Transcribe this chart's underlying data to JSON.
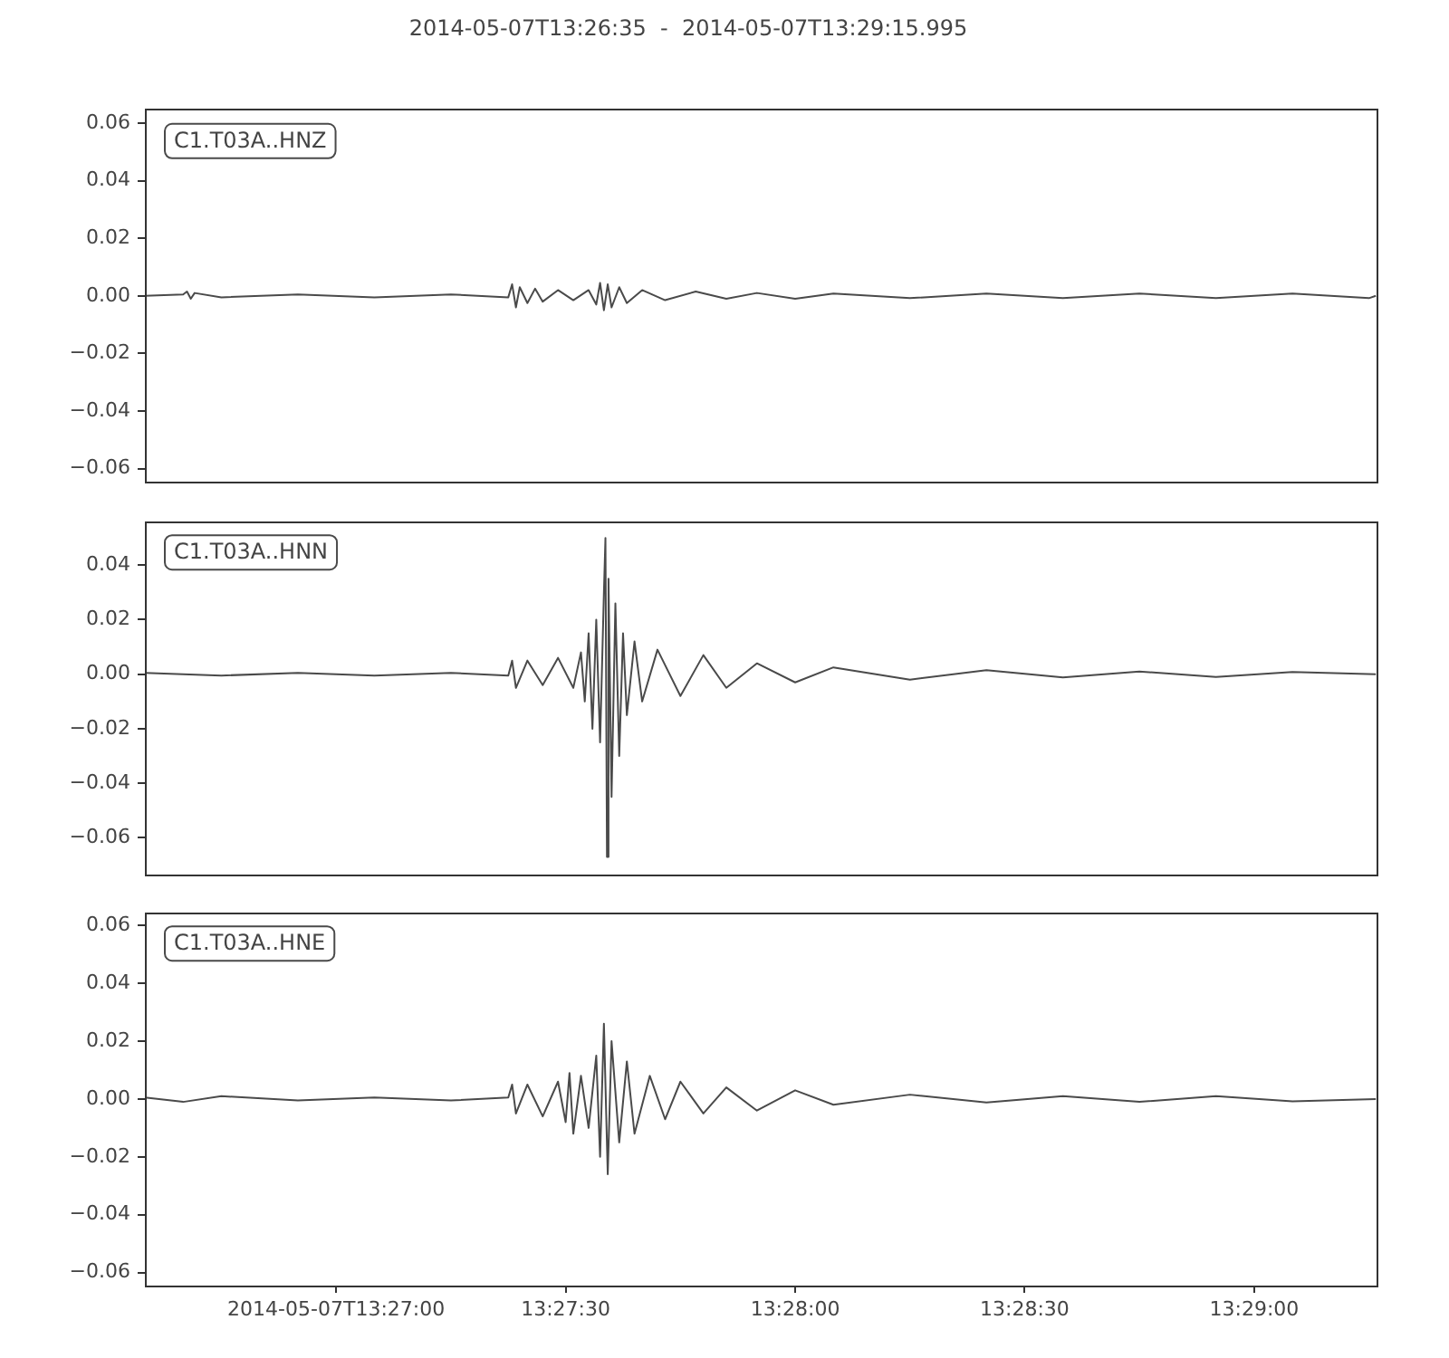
{
  "chart_data": [
    {
      "type": "line",
      "title": "2014-05-07T13:26:35  -  2014-05-07T13:29:15.995",
      "xlim": [
        "2014-05-07T13:26:35",
        "2014-05-07T13:29:15.995"
      ],
      "ylim": [
        -0.0648,
        0.0648
      ],
      "yticks": [
        {
          "value": -0.06,
          "label": "−0.06"
        },
        {
          "value": -0.04,
          "label": "−0.04"
        },
        {
          "value": -0.02,
          "label": "−0.02"
        },
        {
          "value": 0,
          "label": "0.00"
        },
        {
          "value": 0.02,
          "label": "0.02"
        },
        {
          "value": 0.04,
          "label": "0.04"
        },
        {
          "value": 0.06,
          "label": "0.06"
        }
      ],
      "tick_labels": "y",
      "grid": false,
      "legend": false,
      "marker": "none",
      "line_style": "solid",
      "series": [
        {
          "name": "C1.T03A..HNZ",
          "color": "#4a4a4a",
          "x": [
            "2014-05-07T13:26:35",
            "2014-05-07T13:26:40",
            "2014-05-07T13:26:40.5",
            "2014-05-07T13:26:41",
            "2014-05-07T13:26:41.5",
            "2014-05-07T13:26:45",
            "2014-05-07T13:26:55",
            "2014-05-07T13:27:05",
            "2014-05-07T13:27:15",
            "2014-05-07T13:27:22.5",
            "2014-05-07T13:27:23",
            "2014-05-07T13:27:23.5",
            "2014-05-07T13:27:24",
            "2014-05-07T13:27:25",
            "2014-05-07T13:27:26",
            "2014-05-07T13:27:27",
            "2014-05-07T13:27:29",
            "2014-05-07T13:27:31",
            "2014-05-07T13:27:33",
            "2014-05-07T13:27:34",
            "2014-05-07T13:27:34.5",
            "2014-05-07T13:27:35",
            "2014-05-07T13:27:35.5",
            "2014-05-07T13:27:36",
            "2014-05-07T13:27:37",
            "2014-05-07T13:27:38",
            "2014-05-07T13:27:40",
            "2014-05-07T13:27:43",
            "2014-05-07T13:27:47",
            "2014-05-07T13:27:51",
            "2014-05-07T13:27:55",
            "2014-05-07T13:28:00",
            "2014-05-07T13:28:05",
            "2014-05-07T13:28:15",
            "2014-05-07T13:28:25",
            "2014-05-07T13:28:35",
            "2014-05-07T13:28:45",
            "2014-05-07T13:28:55",
            "2014-05-07T13:29:05",
            "2014-05-07T13:29:15",
            "2014-05-07T13:29:15.9"
          ],
          "values": [
            0,
            0.0005,
            0.0015,
            -0.001,
            0.001,
            -0.0005,
            0.0005,
            -0.0005,
            0.0005,
            -0.0005,
            0.004,
            -0.004,
            0.003,
            -0.0025,
            0.0025,
            -0.002,
            0.002,
            -0.0015,
            0.002,
            -0.003,
            0.0045,
            -0.005,
            0.004,
            -0.004,
            0.003,
            -0.0025,
            0.002,
            -0.0015,
            0.0015,
            -0.001,
            0.001,
            -0.001,
            0.0008,
            -0.0008,
            0.0008,
            -0.0008,
            0.0008,
            -0.0008,
            0.0008,
            -0.0008,
            0
          ]
        }
      ]
    },
    {
      "type": "line",
      "xlim": [
        "2014-05-07T13:26:35",
        "2014-05-07T13:29:15.995"
      ],
      "ylim": [
        -0.0731,
        0.0563
      ],
      "yticks": [
        {
          "value": -0.06,
          "label": "−0.06"
        },
        {
          "value": -0.04,
          "label": "−0.04"
        },
        {
          "value": -0.02,
          "label": "−0.02"
        },
        {
          "value": 0,
          "label": "0.00"
        },
        {
          "value": 0.02,
          "label": "0.02"
        },
        {
          "value": 0.04,
          "label": "0.04"
        }
      ],
      "tick_labels": "y",
      "grid": false,
      "legend": false,
      "marker": "none",
      "line_style": "solid",
      "series": [
        {
          "name": "C1.T03A..HNN",
          "color": "#4a4a4a",
          "x": [
            "2014-05-07T13:26:35",
            "2014-05-07T13:26:45",
            "2014-05-07T13:26:55",
            "2014-05-07T13:27:05",
            "2014-05-07T13:27:15",
            "2014-05-07T13:27:22.5",
            "2014-05-07T13:27:23",
            "2014-05-07T13:27:23.5",
            "2014-05-07T13:27:25",
            "2014-05-07T13:27:27",
            "2014-05-07T13:27:29",
            "2014-05-07T13:27:31",
            "2014-05-07T13:27:32",
            "2014-05-07T13:27:32.5",
            "2014-05-07T13:27:33",
            "2014-05-07T13:27:33.5",
            "2014-05-07T13:27:34",
            "2014-05-07T13:27:34.5",
            "2014-05-07T13:27:35",
            "2014-05-07T13:27:35.2",
            "2014-05-07T13:27:35.4",
            "2014-05-07T13:27:35.6",
            "2014-05-07T13:27:36",
            "2014-05-07T13:27:36.5",
            "2014-05-07T13:27:37",
            "2014-05-07T13:27:37.5",
            "2014-05-07T13:27:38",
            "2014-05-07T13:27:39",
            "2014-05-07T13:27:40",
            "2014-05-07T13:27:42",
            "2014-05-07T13:27:45",
            "2014-05-07T13:27:48",
            "2014-05-07T13:27:51",
            "2014-05-07T13:27:55",
            "2014-05-07T13:28:00",
            "2014-05-07T13:28:05",
            "2014-05-07T13:28:15",
            "2014-05-07T13:28:25",
            "2014-05-07T13:28:35",
            "2014-05-07T13:28:45",
            "2014-05-07T13:28:55",
            "2014-05-07T13:29:05",
            "2014-05-07T13:29:15.9"
          ],
          "values": [
            0.0005,
            -0.0005,
            0.0005,
            -0.0005,
            0.0005,
            -0.0005,
            0.005,
            -0.005,
            0.005,
            -0.004,
            0.006,
            -0.005,
            0.008,
            -0.01,
            0.015,
            -0.02,
            0.02,
            -0.025,
            0.03,
            0.05,
            -0.067,
            0.035,
            -0.045,
            0.026,
            -0.03,
            0.015,
            -0.015,
            0.012,
            -0.01,
            0.009,
            -0.008,
            0.007,
            -0.005,
            0.004,
            -0.003,
            0.0025,
            -0.002,
            0.0015,
            -0.0012,
            0.001,
            -0.001,
            0.0008,
            0
          ]
        }
      ]
    },
    {
      "type": "line",
      "xlim": [
        "2014-05-07T13:26:35",
        "2014-05-07T13:29:15.995"
      ],
      "xticks": [
        {
          "value": "2014-05-07T13:27:00",
          "label": "2014-05-07T13:27:00"
        },
        {
          "value": "2014-05-07T13:27:30",
          "label": "13:27:30"
        },
        {
          "value": "2014-05-07T13:28:00",
          "label": "13:28:00"
        },
        {
          "value": "2014-05-07T13:28:30",
          "label": "13:28:30"
        },
        {
          "value": "2014-05-07T13:29:00",
          "label": "13:29:00"
        }
      ],
      "ylim": [
        -0.0645,
        0.0647
      ],
      "yticks": [
        {
          "value": -0.06,
          "label": "−0.06"
        },
        {
          "value": -0.04,
          "label": "−0.04"
        },
        {
          "value": -0.02,
          "label": "−0.02"
        },
        {
          "value": 0,
          "label": "0.00"
        },
        {
          "value": 0.02,
          "label": "0.02"
        },
        {
          "value": 0.04,
          "label": "0.04"
        },
        {
          "value": 0.06,
          "label": "0.06"
        }
      ],
      "grid": false,
      "legend": false,
      "marker": "none",
      "line_style": "solid",
      "series": [
        {
          "name": "C1.T03A..HNE",
          "color": "#4a4a4a",
          "x": [
            "2014-05-07T13:26:35",
            "2014-05-07T13:26:40",
            "2014-05-07T13:26:45",
            "2014-05-07T13:26:55",
            "2014-05-07T13:27:05",
            "2014-05-07T13:27:15",
            "2014-05-07T13:27:22.5",
            "2014-05-07T13:27:23",
            "2014-05-07T13:27:23.5",
            "2014-05-07T13:27:25",
            "2014-05-07T13:27:27",
            "2014-05-07T13:27:29",
            "2014-05-07T13:27:30",
            "2014-05-07T13:27:30.5",
            "2014-05-07T13:27:31",
            "2014-05-07T13:27:32",
            "2014-05-07T13:27:33",
            "2014-05-07T13:27:34",
            "2014-05-07T13:27:34.5",
            "2014-05-07T13:27:35",
            "2014-05-07T13:27:35.5",
            "2014-05-07T13:27:36",
            "2014-05-07T13:27:37",
            "2014-05-07T13:27:38",
            "2014-05-07T13:27:39",
            "2014-05-07T13:27:41",
            "2014-05-07T13:27:43",
            "2014-05-07T13:27:45",
            "2014-05-07T13:27:48",
            "2014-05-07T13:27:51",
            "2014-05-07T13:27:55",
            "2014-05-07T13:28:00",
            "2014-05-07T13:28:05",
            "2014-05-07T13:28:15",
            "2014-05-07T13:28:25",
            "2014-05-07T13:28:35",
            "2014-05-07T13:28:45",
            "2014-05-07T13:28:55",
            "2014-05-07T13:29:05",
            "2014-05-07T13:29:15.9"
          ],
          "values": [
            0.0005,
            -0.001,
            0.001,
            -0.0005,
            0.0005,
            -0.0005,
            0.0005,
            0.005,
            -0.005,
            0.005,
            -0.006,
            0.006,
            -0.008,
            0.009,
            -0.012,
            0.008,
            -0.01,
            0.015,
            -0.02,
            0.026,
            -0.026,
            0.02,
            -0.015,
            0.013,
            -0.012,
            0.008,
            -0.007,
            0.006,
            -0.005,
            0.004,
            -0.004,
            0.003,
            -0.002,
            0.0015,
            -0.0012,
            0.001,
            -0.001,
            0.001,
            -0.0008,
            0
          ]
        }
      ]
    }
  ]
}
